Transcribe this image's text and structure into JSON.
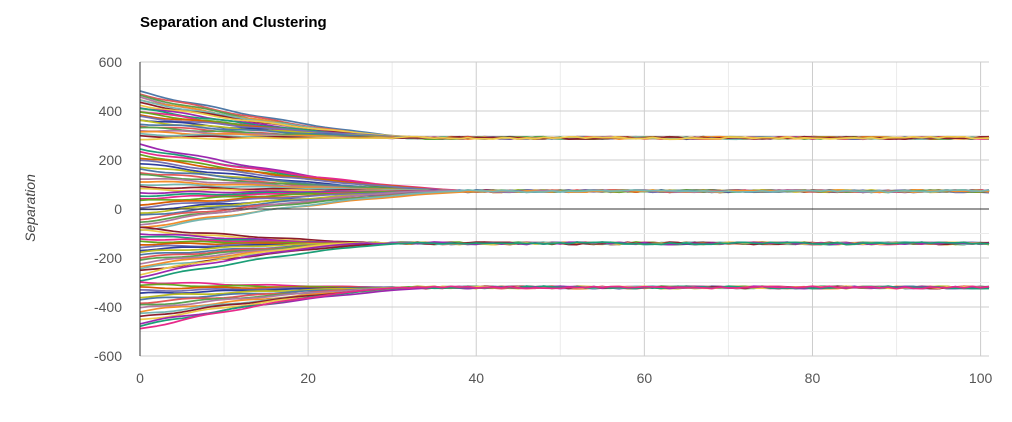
{
  "chart_data": {
    "type": "line",
    "title": "Separation and Clustering",
    "xlabel": "",
    "ylabel": "Separation",
    "xlim": [
      0,
      101
    ],
    "ylim": [
      -600,
      600
    ],
    "x_ticks": [
      0,
      20,
      40,
      60,
      80,
      100
    ],
    "y_ticks": [
      600,
      400,
      200,
      0,
      -200,
      -400,
      -600
    ],
    "grid": true,
    "legend": "none",
    "clusters": [
      {
        "final_value": 290,
        "converge_x": 33,
        "start_values": [
          478,
          470,
          462,
          455,
          447,
          440,
          432,
          424,
          416,
          408,
          400,
          392,
          383,
          375,
          366,
          358,
          349,
          340,
          332,
          323,
          314,
          305,
          296,
          287
        ]
      },
      {
        "final_value": 73,
        "converge_x": 38,
        "start_values": [
          262,
          248,
          235,
          222,
          210,
          198,
          186,
          174,
          162,
          150,
          138,
          126,
          114,
          102,
          90,
          79,
          67,
          55,
          44,
          32,
          20,
          8,
          -4,
          -16,
          -28,
          -40,
          -52,
          -64,
          -76,
          -88
        ]
      },
      {
        "final_value": -140,
        "converge_x": 28,
        "start_values": [
          -78,
          -88,
          -99,
          -110,
          -121,
          -132,
          -143,
          -155,
          -166,
          -177,
          -188,
          -199,
          -210,
          -221,
          -232,
          -243,
          -254,
          -265,
          -276,
          -290
        ]
      },
      {
        "final_value": -320,
        "converge_x": 33,
        "start_values": [
          -298,
          -310,
          -322,
          -334,
          -346,
          -358,
          -370,
          -382,
          -394,
          -406,
          -418,
          -430,
          -442,
          -454,
          -466,
          -478,
          -490
        ]
      }
    ],
    "colors": [
      "#4e79a7",
      "#e15759",
      "#59a14f",
      "#b07aa1",
      "#f28e2b",
      "#76b7b2",
      "#8c1d2c",
      "#edc948",
      "#9c27b0",
      "#1b9e77",
      "#e7298a",
      "#66a61e",
      "#d95f02",
      "#7570b3",
      "#2f3e9e",
      "#bcbd22"
    ]
  }
}
